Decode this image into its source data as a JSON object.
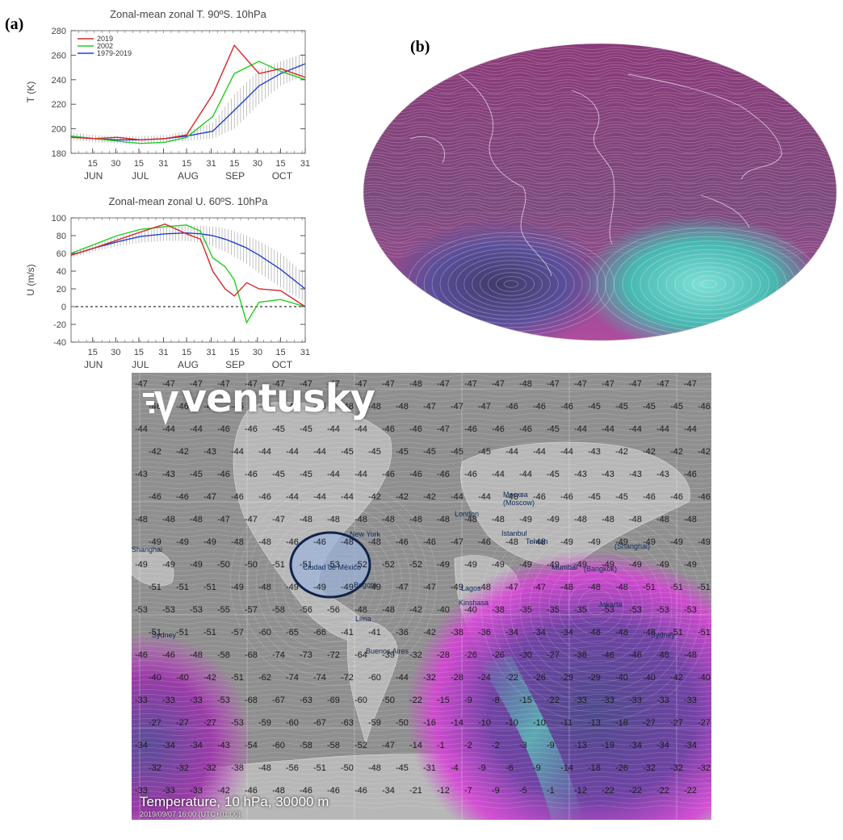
{
  "panel_labels": {
    "a": "(a)",
    "b": "(b)"
  },
  "chart_data": [
    {
      "type": "line",
      "title": "Zonal-mean zonal T. 90ºS. 10hPa",
      "xlabel": "",
      "ylabel": "T (K)",
      "ylim": [
        180,
        280
      ],
      "yticks": [
        "180",
        "200",
        "220",
        "240",
        "260",
        "280"
      ],
      "xticks_day": [
        "15",
        "30",
        "15",
        "31",
        "15",
        "31",
        "15",
        "30",
        "15",
        "31"
      ],
      "xticks_month": [
        "JUN",
        "JUL",
        "AUG",
        "SEP",
        "OCT"
      ],
      "x_days": [
        0,
        15,
        30,
        45,
        61,
        75,
        92,
        106,
        122,
        136,
        152
      ],
      "series": [
        {
          "name": "2019",
          "color": "#d62728",
          "values": [
            193,
            192,
            193,
            191,
            192,
            195,
            228,
            268,
            245,
            249,
            242
          ]
        },
        {
          "name": "2002",
          "color": "#22cc22",
          "values": [
            194,
            192,
            190,
            188,
            189,
            193,
            210,
            245,
            255,
            247,
            240
          ]
        },
        {
          "name": "1979-2019",
          "color": "#1f3fcf",
          "values": [
            194,
            192,
            191,
            191,
            192,
            194,
            198,
            215,
            235,
            245,
            253
          ]
        }
      ],
      "band": {
        "lower": [
          191,
          189,
          188,
          188,
          189,
          190,
          192,
          200,
          220,
          235,
          244
        ],
        "upper": [
          197,
          195,
          194,
          194,
          195,
          198,
          205,
          228,
          248,
          255,
          262
        ]
      }
    },
    {
      "type": "line",
      "title": "Zonal-mean zonal U. 60ºS. 10hPa",
      "xlabel": "",
      "ylabel": "U (m/s)",
      "ylim": [
        -40,
        100
      ],
      "yticks": [
        "-40",
        "-20",
        "0",
        "20",
        "40",
        "60",
        "80",
        "100"
      ],
      "xticks_day": [
        "15",
        "30",
        "15",
        "31",
        "15",
        "31",
        "15",
        "30",
        "15",
        "31"
      ],
      "xticks_month": [
        "JUN",
        "JUL",
        "AUG",
        "SEP",
        "OCT"
      ],
      "x_days": [
        0,
        15,
        30,
        45,
        61,
        75,
        84,
        92,
        100,
        106,
        114,
        122,
        136,
        152
      ],
      "series": [
        {
          "name": "2019",
          "color": "#d62728",
          "values": [
            58,
            66,
            75,
            84,
            93,
            82,
            76,
            40,
            20,
            12,
            27,
            20,
            18,
            0
          ]
        },
        {
          "name": "2002",
          "color": "#22cc22",
          "values": [
            60,
            70,
            80,
            87,
            90,
            92,
            85,
            55,
            45,
            30,
            -18,
            5,
            8,
            0
          ]
        },
        {
          "name": "1979-2019",
          "color": "#1f3fcf",
          "values": [
            58,
            66,
            73,
            79,
            82,
            83,
            82,
            80,
            76,
            72,
            66,
            58,
            42,
            20
          ]
        }
      ],
      "band": {
        "lower": [
          55,
          62,
          68,
          72,
          74,
          74,
          72,
          68,
          62,
          56,
          48,
          38,
          22,
          5
        ],
        "upper": [
          62,
          70,
          78,
          85,
          89,
          91,
          91,
          90,
          88,
          85,
          80,
          74,
          60,
          36
        ]
      }
    }
  ],
  "map_b": {
    "colors": {
      "upper": "#8a3a78",
      "lower": "#b04c9e",
      "vortex_left": "#5a4f9a",
      "vortex_right": "#47b8b0"
    }
  },
  "ventusky": {
    "logo": "ventusky",
    "title": "Temperature, 10 hPa, 30000 m",
    "timestamp": "2019/09/07 16:00 (UTC+01:00)",
    "highlight_color": "#9bb3dd",
    "cities": [
      {
        "name": "New York"
      },
      {
        "name": "London"
      },
      {
        "name": "Москва\n(Moscow)"
      },
      {
        "name": "Istanbul"
      },
      {
        "name": "Tehran"
      },
      {
        "name": "Ciudad de México"
      },
      {
        "name": "Bogotá"
      },
      {
        "name": "Lima"
      },
      {
        "name": "Lagos"
      },
      {
        "name": "Kinshasa"
      },
      {
        "name": "Mumbai"
      },
      {
        "name": "(Bangkok)"
      },
      {
        "name": "Jakarta"
      },
      {
        "name": "(Shanghai)"
      },
      {
        "name": "Shanghai"
      },
      {
        "name": "Sydney"
      },
      {
        "name": "Sydney"
      },
      {
        "name": "Buenos Aires"
      }
    ],
    "grid_rows": [
      [
        "-47",
        "-47",
        "-47",
        "-47",
        "-47",
        "-47",
        "-47",
        "-47",
        "-47",
        "-47",
        "-48",
        "-47",
        "-47",
        "-47",
        "-48",
        "-47",
        "-47",
        "-47",
        "-47",
        "-47",
        "-47"
      ],
      [
        "-46",
        "-46",
        "-46",
        "-45",
        "-45",
        "-45",
        "-46",
        "-48",
        "-48",
        "-48",
        "-47",
        "-47",
        "-47",
        "-46",
        "-46",
        "-46",
        "-45",
        "-45",
        "-45",
        "-45",
        "-46"
      ],
      [
        "-44",
        "-44",
        "-44",
        "-46",
        "-46",
        "-45",
        "-45",
        "-44",
        "-44",
        "-46",
        "-46",
        "-47",
        "-46",
        "-46",
        "-46",
        "-45",
        "-44",
        "-44",
        "-44",
        "-44",
        "-44"
      ],
      [
        "-42",
        "-42",
        "-43",
        "-44",
        "-44",
        "-44",
        "-44",
        "-45",
        "-45",
        "-45",
        "-45",
        "-45",
        "-45",
        "-44",
        "-44",
        "-44",
        "-43",
        "-42",
        "-42",
        "-42",
        "-42"
      ],
      [
        "-43",
        "-43",
        "-45",
        "-46",
        "-46",
        "-45",
        "-45",
        "-44",
        "-44",
        "-46",
        "-46",
        "-46",
        "-46",
        "-44",
        "-44",
        "-45",
        "-43",
        "-43",
        "-43",
        "-43",
        "-46"
      ],
      [
        "-46",
        "-46",
        "-47",
        "-46",
        "-46",
        "-44",
        "-44",
        "-44",
        "-42",
        "-42",
        "-42",
        "-44",
        "-44",
        "-46",
        "-46",
        "-46",
        "-45",
        "-45",
        "-46",
        "-46",
        "-46"
      ],
      [
        "-48",
        "-48",
        "-48",
        "-47",
        "-47",
        "-47",
        "-48",
        "-48",
        "-48",
        "-48",
        "-48",
        "-48",
        "-48",
        "-48",
        "-49",
        "-49",
        "-48",
        "-48",
        "-48",
        "-48",
        "-48"
      ],
      [
        "-49",
        "-49",
        "-49",
        "-48",
        "-48",
        "-46",
        "-46",
        "-48",
        "-48",
        "-46",
        "-46",
        "-47",
        "-46",
        "-48",
        "-48",
        "-49",
        "-49",
        "-49",
        "-49",
        "-49",
        "-49"
      ],
      [
        "-49",
        "-49",
        "-49",
        "-50",
        "-50",
        "-51",
        "-51",
        "-53",
        "-52",
        "-52",
        "-52",
        "-49",
        "-49",
        "-49",
        "-49",
        "-49",
        "-49",
        "-49",
        "-49",
        "-49",
        "-49"
      ],
      [
        "-51",
        "-51",
        "-51",
        "-49",
        "-48",
        "-49",
        "-49",
        "-49",
        "-49",
        "-47",
        "-47",
        "-49",
        "-48",
        "-47",
        "-47",
        "-48",
        "-48",
        "-48",
        "-51",
        "-51",
        "-51"
      ],
      [
        "-53",
        "-53",
        "-53",
        "-55",
        "-57",
        "-58",
        "-56",
        "-56",
        "-48",
        "-48",
        "-42",
        "-40",
        "-40",
        "-38",
        "-35",
        "-35",
        "-35",
        "-53",
        "-53",
        "-53",
        "-53"
      ],
      [
        "-51",
        "-51",
        "-51",
        "-57",
        "-60",
        "-65",
        "-66",
        "-41",
        "-41",
        "-36",
        "-42",
        "-38",
        "-36",
        "-34",
        "-34",
        "-34",
        "-48",
        "-48",
        "-48",
        "-51",
        "-51"
      ],
      [
        "-46",
        "-46",
        "-48",
        "-58",
        "-68",
        "-74",
        "-73",
        "-72",
        "-64",
        "-39",
        "-32",
        "-28",
        "-26",
        "-26",
        "-30",
        "-27",
        "-38",
        "-46",
        "-46",
        "-48",
        "-48"
      ],
      [
        "-40",
        "-40",
        "-42",
        "-51",
        "-62",
        "-74",
        "-74",
        "-72",
        "-60",
        "-44",
        "-32",
        "-28",
        "-24",
        "-22",
        "-26",
        "-29",
        "-29",
        "-40",
        "-40",
        "-42",
        "-40"
      ],
      [
        "-33",
        "-33",
        "-33",
        "-53",
        "-68",
        "-67",
        "-63",
        "-69",
        "-60",
        "-50",
        "-22",
        "-15",
        "-9",
        "-8",
        "-15",
        "-22",
        "-33",
        "-33",
        "-33",
        "-33",
        "-33"
      ],
      [
        "-27",
        "-27",
        "-27",
        "-53",
        "-59",
        "-60",
        "-67",
        "-63",
        "-59",
        "-50",
        "-16",
        "-14",
        "-10",
        "-10",
        "-10",
        "-11",
        "-13",
        "-18",
        "-27",
        "-27",
        "-27"
      ],
      [
        "-34",
        "-34",
        "-34",
        "-43",
        "-54",
        "-60",
        "-58",
        "-58",
        "-52",
        "-47",
        "-14",
        "-1",
        "-2",
        "-2",
        "-3",
        "-9",
        "-13",
        "-19",
        "-34",
        "-34",
        "-34"
      ],
      [
        "-32",
        "-32",
        "-32",
        "-38",
        "-48",
        "-56",
        "-51",
        "-50",
        "-48",
        "-45",
        "-31",
        "-4",
        "-9",
        "-6",
        "-9",
        "-14",
        "-18",
        "-26",
        "-32",
        "-32",
        "-32"
      ],
      [
        "-33",
        "-33",
        "-33",
        "-42",
        "-46",
        "-48",
        "-46",
        "-46",
        "-46",
        "-34",
        "-21",
        "-12",
        "-7",
        "-9",
        "-5",
        "-1",
        "-12",
        "-22",
        "-22",
        "-22",
        "-22"
      ]
    ]
  }
}
